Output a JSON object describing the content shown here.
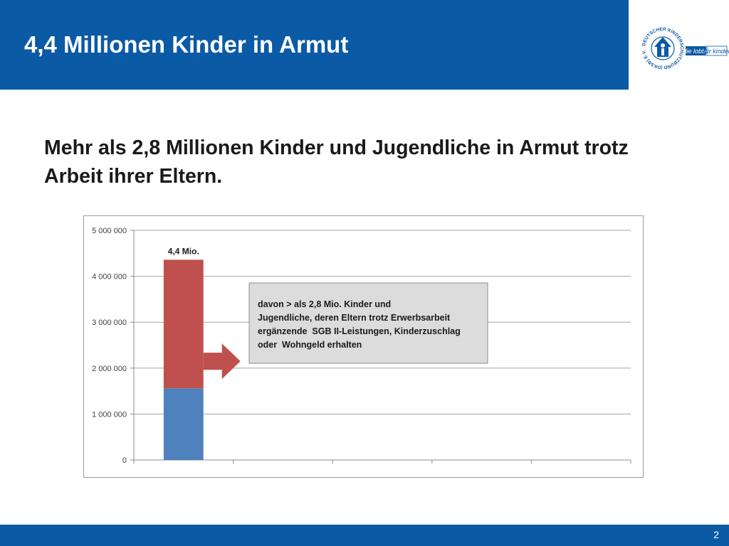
{
  "slide": {
    "title": "4,4 Millionen Kinder in Armut",
    "subtitle": "Mehr als 2,8 Millionen Kinder und Jugendliche in Armut trotz Arbeit ihrer Eltern.",
    "page_number": "2"
  },
  "logo": {
    "ring_text": "DEUTSCHER KINDERSCHUTZBUND (DKSB) E.V.",
    "tagline_left": "die lobby",
    "tagline_right": "für kinder"
  },
  "colors": {
    "brand_blue": "#0b5aa5",
    "bar_blue": "#4f81bd",
    "bar_red": "#c0504d"
  },
  "chart_data": {
    "type": "bar",
    "stacked": true,
    "ylim": [
      0,
      5000000
    ],
    "yticks": [
      "0",
      "1 000 000",
      "2 000 000",
      "3 000 000",
      "4 000 000",
      "5 000 000"
    ],
    "ytick_values": [
      0,
      1000000,
      2000000,
      3000000,
      4000000,
      5000000
    ],
    "categories": [
      ""
    ],
    "category_slots": 5,
    "series": [
      {
        "values": [
          1560000
        ],
        "color": "#4f81bd"
      },
      {
        "values": [
          2800000
        ],
        "color": "#c0504d"
      }
    ],
    "bar_label": "4,4 Mio.",
    "annotation_lines": [
      "davon > als 2,8 Mio. Kinder und",
      "Jugendliche, deren Eltern trotz Erwerbsarbeit",
      "ergänzende  SGB II-Leistungen, Kinderzuschlag",
      "oder  Wohngeld erhalten"
    ],
    "grid": true,
    "legend": "none"
  }
}
